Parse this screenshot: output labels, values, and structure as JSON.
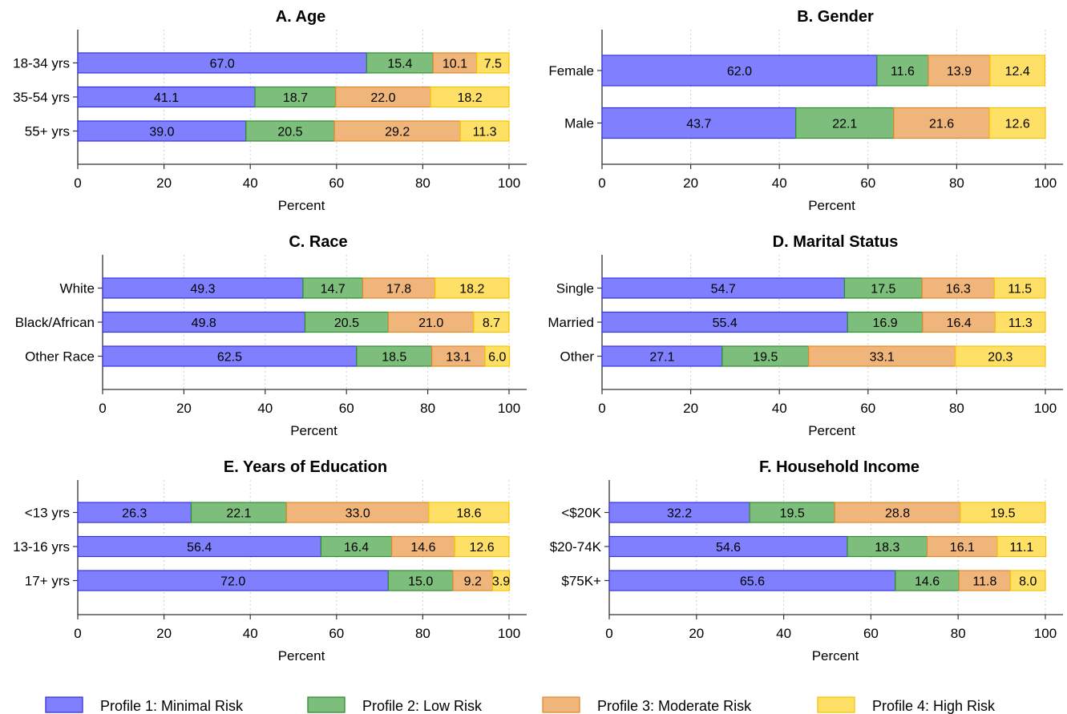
{
  "legend": [
    {
      "name": "Profile 1: Minimal Risk",
      "fill": "#8080ff",
      "stroke": "#3333dd"
    },
    {
      "name": "Profile 2: Low Risk",
      "fill": "#7dbe7d",
      "stroke": "#2f8f2f"
    },
    {
      "name": "Profile 3: Moderate Risk",
      "fill": "#f0b57a",
      "stroke": "#e08a2a"
    },
    {
      "name": "Profile 4: High Risk",
      "fill": "#ffe066",
      "stroke": "#f5c400"
    }
  ],
  "chart_data": [
    {
      "type": "bar",
      "orientation": "horizontal",
      "stacked": true,
      "title": "A. Age",
      "xlabel": "Percent",
      "xlim": [
        0,
        100
      ],
      "xticks": [
        0,
        20,
        40,
        60,
        80,
        100
      ],
      "categories": [
        "18-34 yrs",
        "35-54 yrs",
        "55+ yrs"
      ],
      "series": [
        {
          "name": "Profile 1: Minimal Risk",
          "values": [
            67.0,
            41.1,
            39.0
          ]
        },
        {
          "name": "Profile 2: Low Risk",
          "values": [
            15.4,
            18.7,
            20.5
          ]
        },
        {
          "name": "Profile 3: Moderate Risk",
          "values": [
            10.1,
            22.0,
            29.2
          ]
        },
        {
          "name": "Profile 4: High Risk",
          "values": [
            7.5,
            18.2,
            11.3
          ]
        }
      ]
    },
    {
      "type": "bar",
      "orientation": "horizontal",
      "stacked": true,
      "title": "B. Gender",
      "xlabel": "Percent",
      "xlim": [
        0,
        100
      ],
      "xticks": [
        0,
        20,
        40,
        60,
        80,
        100
      ],
      "categories": [
        "Female",
        "Male"
      ],
      "series": [
        {
          "name": "Profile 1: Minimal Risk",
          "values": [
            62.0,
            43.7
          ]
        },
        {
          "name": "Profile 2: Low Risk",
          "values": [
            11.6,
            22.1
          ]
        },
        {
          "name": "Profile 3: Moderate Risk",
          "values": [
            13.9,
            21.6
          ]
        },
        {
          "name": "Profile 4: High Risk",
          "values": [
            12.4,
            12.6
          ]
        }
      ]
    },
    {
      "type": "bar",
      "orientation": "horizontal",
      "stacked": true,
      "title": "C. Race",
      "xlabel": "Percent",
      "xlim": [
        0,
        100
      ],
      "xticks": [
        0,
        20,
        40,
        60,
        80,
        100
      ],
      "categories": [
        "White",
        "Black/African",
        "Other Race"
      ],
      "series": [
        {
          "name": "Profile 1: Minimal Risk",
          "values": [
            49.3,
            49.8,
            62.5
          ]
        },
        {
          "name": "Profile 2: Low Risk",
          "values": [
            14.7,
            20.5,
            18.5
          ]
        },
        {
          "name": "Profile 3: Moderate Risk",
          "values": [
            17.8,
            21.0,
            13.1
          ]
        },
        {
          "name": "Profile 4: High Risk",
          "values": [
            18.2,
            8.7,
            6.0
          ]
        }
      ]
    },
    {
      "type": "bar",
      "orientation": "horizontal",
      "stacked": true,
      "title": "D. Marital Status",
      "xlabel": "Percent",
      "xlim": [
        0,
        100
      ],
      "xticks": [
        0,
        20,
        40,
        60,
        80,
        100
      ],
      "categories": [
        "Single",
        "Married",
        "Other"
      ],
      "series": [
        {
          "name": "Profile 1: Minimal Risk",
          "values": [
            54.7,
            55.4,
            27.1
          ]
        },
        {
          "name": "Profile 2: Low Risk",
          "values": [
            17.5,
            16.9,
            19.5
          ]
        },
        {
          "name": "Profile 3: Moderate Risk",
          "values": [
            16.3,
            16.4,
            33.1
          ]
        },
        {
          "name": "Profile 4: High Risk",
          "values": [
            11.5,
            11.3,
            20.3
          ]
        }
      ]
    },
    {
      "type": "bar",
      "orientation": "horizontal",
      "stacked": true,
      "title": "E. Years of Education",
      "xlabel": "Percent",
      "xlim": [
        0,
        100
      ],
      "xticks": [
        0,
        20,
        40,
        60,
        80,
        100
      ],
      "categories": [
        "<13 yrs",
        "13-16 yrs",
        "17+ yrs"
      ],
      "series": [
        {
          "name": "Profile 1: Minimal Risk",
          "values": [
            26.3,
            56.4,
            72.0
          ]
        },
        {
          "name": "Profile 2: Low Risk",
          "values": [
            22.1,
            16.4,
            15.0
          ]
        },
        {
          "name": "Profile 3: Moderate Risk",
          "values": [
            33.0,
            14.6,
            9.2
          ]
        },
        {
          "name": "Profile 4: High Risk",
          "values": [
            18.6,
            12.6,
            3.9
          ]
        }
      ]
    },
    {
      "type": "bar",
      "orientation": "horizontal",
      "stacked": true,
      "title": "F. Household Income",
      "xlabel": "Percent",
      "xlim": [
        0,
        100
      ],
      "xticks": [
        0,
        20,
        40,
        60,
        80,
        100
      ],
      "categories": [
        "<$20K",
        "$20-74K",
        "$75K+"
      ],
      "series": [
        {
          "name": "Profile 1: Minimal Risk",
          "values": [
            32.2,
            54.6,
            65.6
          ]
        },
        {
          "name": "Profile 2: Low Risk",
          "values": [
            19.5,
            18.3,
            14.6
          ]
        },
        {
          "name": "Profile 3: Moderate Risk",
          "values": [
            28.8,
            16.1,
            11.8
          ]
        },
        {
          "name": "Profile 4: High Risk",
          "values": [
            19.5,
            11.1,
            8.0
          ]
        }
      ]
    }
  ]
}
